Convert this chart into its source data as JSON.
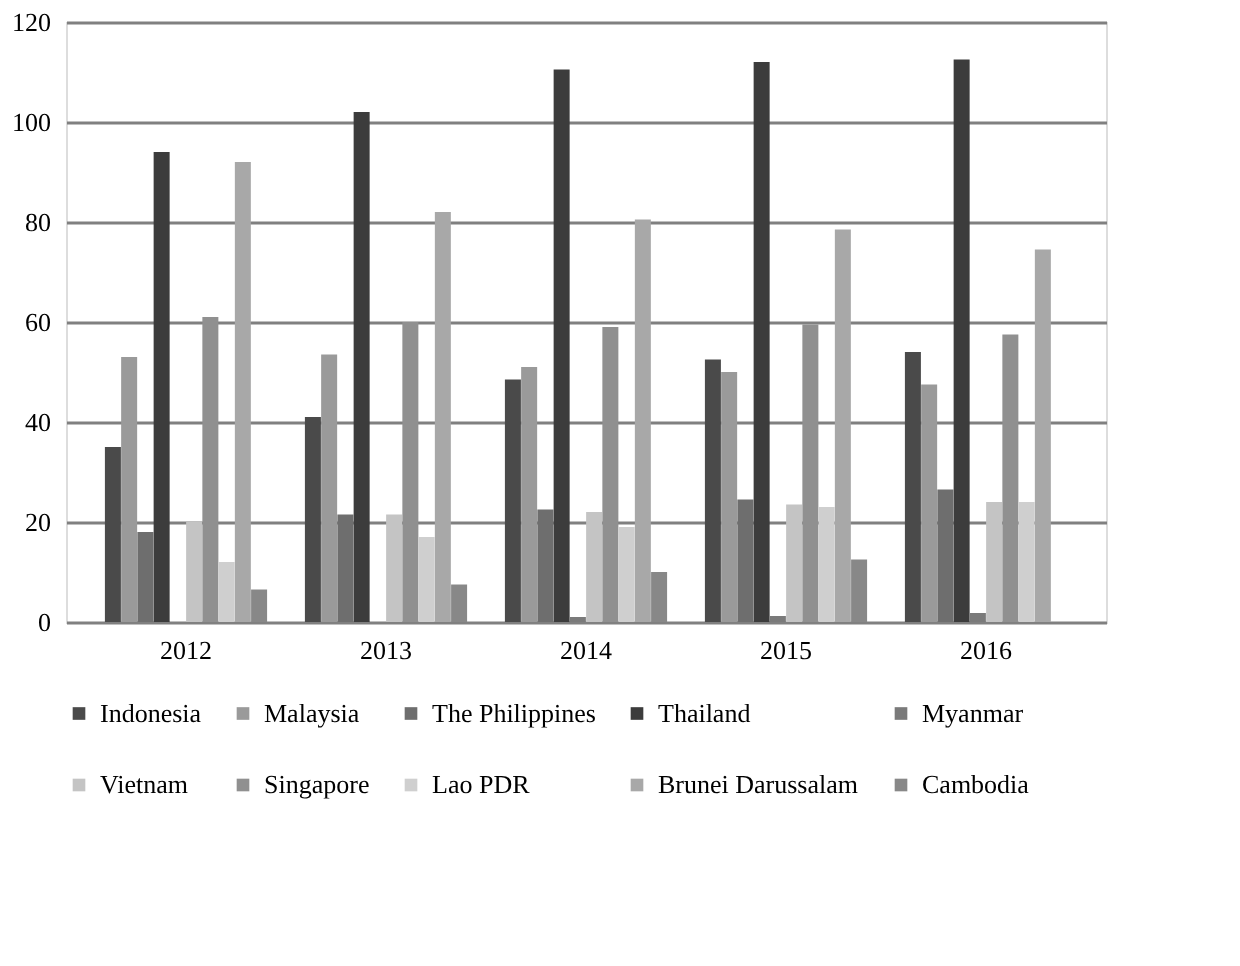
{
  "chart_data": {
    "type": "bar",
    "categories": [
      "2012",
      "2013",
      "2014",
      "2015",
      "2016"
    ],
    "series": [
      {
        "name": "Indonesia",
        "color": "#4a4a4a",
        "values": [
          35,
          41,
          48.5,
          52.5,
          54
        ]
      },
      {
        "name": "Malaysia",
        "color": "#9a9a9a",
        "values": [
          53,
          53.5,
          51,
          50,
          47.5
        ]
      },
      {
        "name": "The Philippines",
        "color": "#6e6e6e",
        "values": [
          18,
          21.5,
          22.5,
          24.5,
          26.5
        ]
      },
      {
        "name": "Thailand",
        "color": "#3c3c3c",
        "values": [
          94,
          102,
          110.5,
          112,
          112.5
        ]
      },
      {
        "name": "Myanmar",
        "color": "#7a7a7a",
        "values": [
          0,
          0,
          1,
          1.2,
          1.8
        ]
      },
      {
        "name": "Vietnam",
        "color": "#c4c4c4",
        "values": [
          20,
          21.5,
          22,
          23.5,
          24
        ]
      },
      {
        "name": "Singapore",
        "color": "#909090",
        "values": [
          61,
          60,
          59,
          59.5,
          57.5
        ]
      },
      {
        "name": "Lao PDR",
        "color": "#cfcfcf",
        "values": [
          12,
          17,
          19,
          23,
          24
        ]
      },
      {
        "name": "Brunei Darussalam",
        "color": "#a8a8a8",
        "values": [
          92,
          82,
          80.5,
          78.5,
          74.5
        ]
      },
      {
        "name": "Cambodia",
        "color": "#888888",
        "values": [
          6.5,
          7.5,
          10,
          12.5,
          null
        ]
      }
    ],
    "ylim": [
      0,
      120
    ],
    "yticks": [
      0,
      20,
      40,
      60,
      80,
      100,
      120
    ],
    "grid": "y",
    "legend": "bottom"
  }
}
